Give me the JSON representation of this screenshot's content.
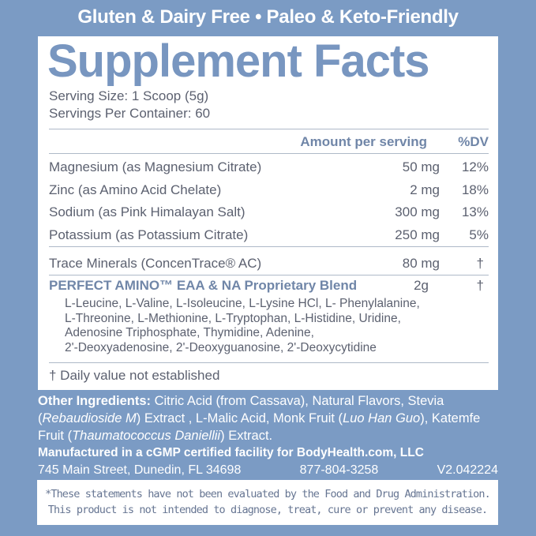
{
  "tagline": "Gluten & Dairy Free • Paleo & Keto-Friendly",
  "title": "Supplement Facts",
  "serving_size": "Serving Size: 1 Scoop (5g)",
  "servings_per_container": "Servings Per Container: 60",
  "header": {
    "amount": "Amount per serving",
    "dv": "%DV"
  },
  "rows": [
    {
      "name": "Magnesium (as Magnesium Citrate)",
      "amount": "50 mg",
      "dv": "12%"
    },
    {
      "name": "Zinc (as Amino Acid Chelate)",
      "amount": "2 mg",
      "dv": "18%"
    },
    {
      "name": "Sodium (as Pink Himalayan Salt)",
      "amount": "300 mg",
      "dv": "13%"
    },
    {
      "name": "Potassium (as Potassium Citrate)",
      "amount": "250 mg",
      "dv": "5%"
    }
  ],
  "trace": {
    "name": "Trace Minerals (ConcenTrace® AC)",
    "amount": "80 mg",
    "dv": "†"
  },
  "blend": {
    "name": "PERFECT AMINO™ EAA & NA Proprietary Blend",
    "amount": "2g",
    "dv": "†",
    "ingredients": [
      "L-Leucine, L-Valine, L-Isoleucine, L-Lysine HCl, L- Phenylalanine,",
      "L-Threonine, L-Methionine, L-Tryptophan, L-Histidine, Uridine,",
      "Adenosine Triphosphate, Thymidine, Adenine,",
      "2'-Deoxyadenosine, 2'-Deoxyguanosine, 2'-Deoxycytidine"
    ]
  },
  "footnote": "† Daily value not established",
  "other": {
    "label": "Other Ingredients:",
    "p1": " Citric Acid (from Cassava), Natural Flavors, Stevia (",
    "i1": "Rebaudioside M",
    "p2": ") Extract , L-Malic Acid, Monk Fruit (",
    "i2": "Luo Han Guo",
    "p3": "), Katemfe Fruit (",
    "i3": "Thaumatococcus Daniellii",
    "p4": ") Extract."
  },
  "manufacturer": "Manufactured in a cGMP certified facility for  BodyHealth.com, LLC",
  "address": "745 Main Street, Dunedin, FL 34698",
  "phone": "877-804-3258",
  "version": "V2.042224",
  "disclaimer": [
    "*These statements have not been evaluated by the Food and Drug Administration.",
    "This product is not intended to diagnose, treat, cure or prevent any disease."
  ]
}
